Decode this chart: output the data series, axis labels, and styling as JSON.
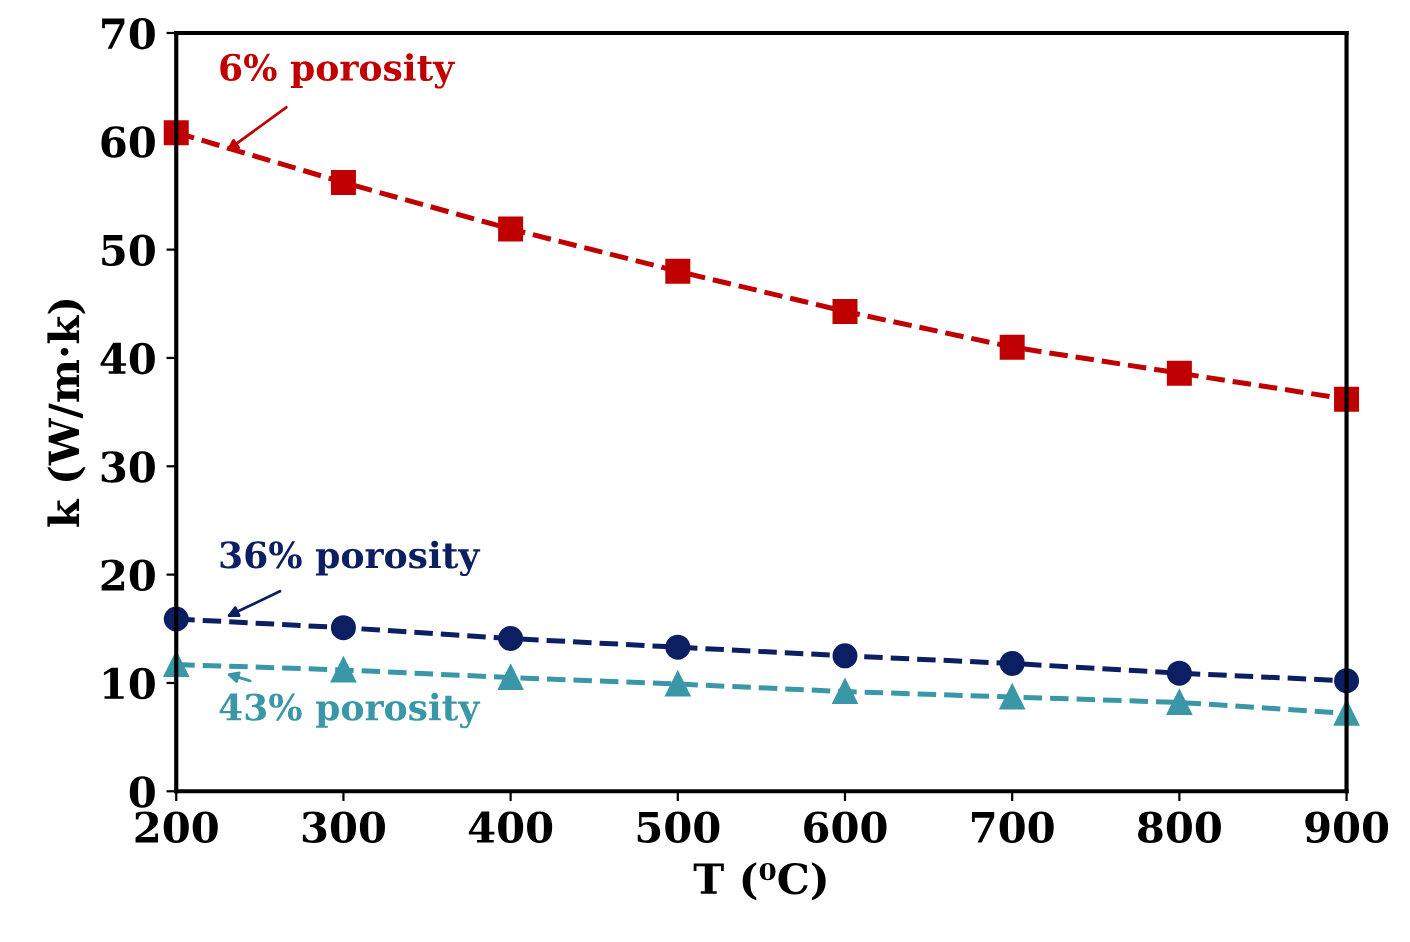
{
  "chart_data": {
    "type": "line",
    "xlabel": "T (⁰C)",
    "ylabel": "k (W/m·k)",
    "x": [
      200,
      300,
      400,
      500,
      600,
      700,
      800,
      900
    ],
    "series": [
      {
        "name": "6% porosity",
        "color": "#c00000",
        "marker": "square",
        "values": [
          60.8,
          56.2,
          51.9,
          48.0,
          44.3,
          41.0,
          38.6,
          36.2
        ]
      },
      {
        "name": "36% porosity",
        "color": "#0d1f63",
        "marker": "circle",
        "values": [
          15.9,
          15.1,
          14.1,
          13.3,
          12.5,
          11.8,
          10.9,
          10.2
        ]
      },
      {
        "name": "43% porosity",
        "color": "#3a97a8",
        "marker": "triangle",
        "values": [
          11.7,
          11.2,
          10.5,
          9.9,
          9.2,
          8.7,
          8.2,
          7.2
        ]
      }
    ],
    "line_style": "dashed",
    "xlim": [
      200,
      900
    ],
    "xticks": [
      200,
      300,
      400,
      500,
      600,
      700,
      800,
      900
    ],
    "ylim": [
      0,
      70
    ],
    "yticks": [
      0,
      10,
      20,
      30,
      40,
      50,
      60,
      70
    ],
    "grid": false
  }
}
